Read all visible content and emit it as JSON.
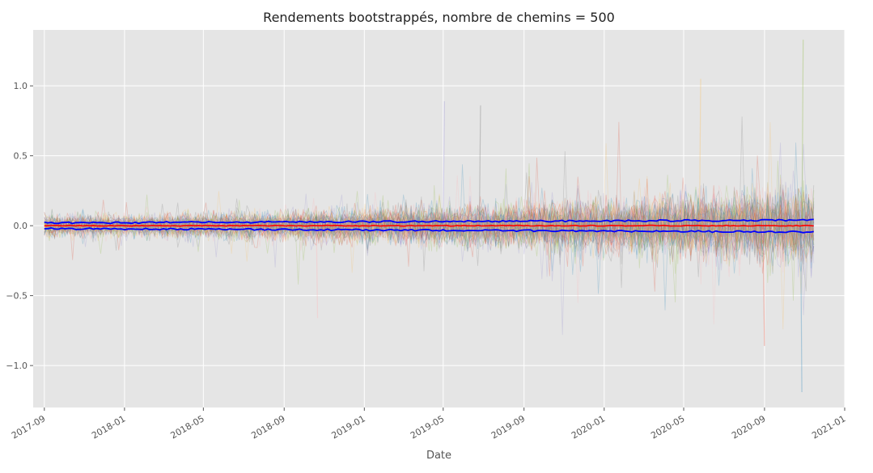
{
  "chart_data": {
    "type": "line",
    "title": "Rendements bootstrappés, nombre de chemins = 500",
    "xlabel": "Date",
    "ylabel": "",
    "x_range": [
      "2017-09-01",
      "2020-11-15"
    ],
    "xlim": [
      "2017-08-15",
      "2021-01-01"
    ],
    "ylim": [
      -1.3,
      1.4
    ],
    "x_ticks": [
      "2017-09",
      "2018-01",
      "2018-05",
      "2018-09",
      "2019-01",
      "2019-05",
      "2019-09",
      "2020-01",
      "2020-05",
      "2020-09",
      "2021-01"
    ],
    "y_ticks": [
      1.0,
      0.5,
      0.0,
      -0.5,
      -1.0
    ],
    "y_tick_labels": [
      "1.0",
      "0.5",
      "0.0",
      "−0.5",
      "−1.0"
    ],
    "grid": true,
    "style": "ggplot",
    "n_paths": 500,
    "series": [
      {
        "role": "bootstrap-paths",
        "count": 500,
        "colors": [
          "#e24a33",
          "#348abd",
          "#988ed5",
          "#777777",
          "#fbc15e",
          "#8eba42",
          "#ffb5b8"
        ],
        "alpha": 0.25
      },
      {
        "role": "upper-band",
        "color": "#0000ff",
        "level_start": 0.02,
        "level_end": 0.04
      },
      {
        "role": "center",
        "color": "#ff0000",
        "level": 0.0
      },
      {
        "role": "lower-band",
        "color": "#0000ff",
        "level_start": -0.02,
        "level_end": -0.045
      }
    ],
    "notable_spikes": [
      {
        "x": "2019-05-01",
        "y": 0.89
      },
      {
        "x": "2019-06-25",
        "y": 0.86
      },
      {
        "x": "2020-05-25",
        "y": 1.05
      },
      {
        "x": "2020-10-28",
        "y": 1.33
      },
      {
        "x": "2018-10-20",
        "y": -0.66
      },
      {
        "x": "2020-08-30",
        "y": -0.86
      },
      {
        "x": "2020-10-26",
        "y": -1.19
      }
    ]
  }
}
